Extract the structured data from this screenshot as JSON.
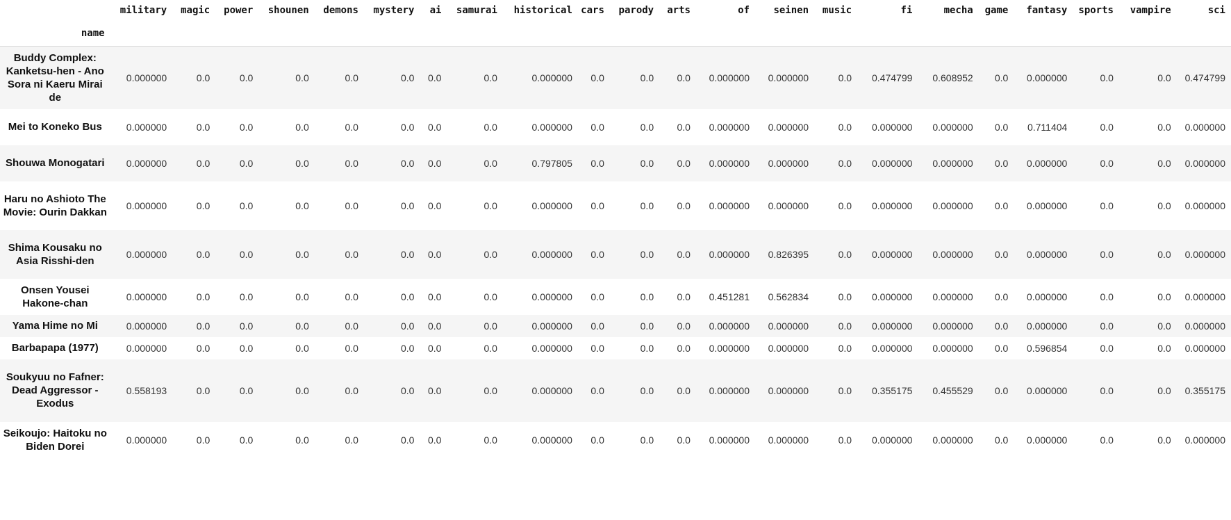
{
  "table": {
    "index_name": "name",
    "columns": [
      "military",
      "magic",
      "power",
      "shounen",
      "demons",
      "mystery",
      "ai",
      "samurai",
      "historical",
      "cars",
      "parody",
      "arts",
      "of",
      "seinen",
      "music",
      "fi",
      "mecha",
      "game",
      "fantasy",
      "sports",
      "vampire",
      "sci"
    ],
    "rows": [
      {
        "name": "Buddy Complex: Kanketsu-hen - Ano Sora ni Kaeru Mirai de",
        "values": [
          "0.000000",
          "0.0",
          "0.0",
          "0.0",
          "0.0",
          "0.0",
          "0.0",
          "0.0",
          "0.000000",
          "0.0",
          "0.0",
          "0.0",
          "0.000000",
          "0.000000",
          "0.0",
          "0.474799",
          "0.608952",
          "0.0",
          "0.000000",
          "0.0",
          "0.0",
          "0.474799"
        ]
      },
      {
        "name": "Mei to Koneko Bus",
        "values": [
          "0.000000",
          "0.0",
          "0.0",
          "0.0",
          "0.0",
          "0.0",
          "0.0",
          "0.0",
          "0.000000",
          "0.0",
          "0.0",
          "0.0",
          "0.000000",
          "0.000000",
          "0.0",
          "0.000000",
          "0.000000",
          "0.0",
          "0.711404",
          "0.0",
          "0.0",
          "0.000000"
        ]
      },
      {
        "name": "Shouwa Monogatari",
        "values": [
          "0.000000",
          "0.0",
          "0.0",
          "0.0",
          "0.0",
          "0.0",
          "0.0",
          "0.0",
          "0.797805",
          "0.0",
          "0.0",
          "0.0",
          "0.000000",
          "0.000000",
          "0.0",
          "0.000000",
          "0.000000",
          "0.0",
          "0.000000",
          "0.0",
          "0.0",
          "0.000000"
        ]
      },
      {
        "name": "Haru no Ashioto The Movie: Ourin Dakkan",
        "values": [
          "0.000000",
          "0.0",
          "0.0",
          "0.0",
          "0.0",
          "0.0",
          "0.0",
          "0.0",
          "0.000000",
          "0.0",
          "0.0",
          "0.0",
          "0.000000",
          "0.000000",
          "0.0",
          "0.000000",
          "0.000000",
          "0.0",
          "0.000000",
          "0.0",
          "0.0",
          "0.000000"
        ]
      },
      {
        "name": "Shima Kousaku no Asia Risshi-den",
        "values": [
          "0.000000",
          "0.0",
          "0.0",
          "0.0",
          "0.0",
          "0.0",
          "0.0",
          "0.0",
          "0.000000",
          "0.0",
          "0.0",
          "0.0",
          "0.000000",
          "0.826395",
          "0.0",
          "0.000000",
          "0.000000",
          "0.0",
          "0.000000",
          "0.0",
          "0.0",
          "0.000000"
        ]
      },
      {
        "name": "Onsen Yousei Hakone-chan",
        "values": [
          "0.000000",
          "0.0",
          "0.0",
          "0.0",
          "0.0",
          "0.0",
          "0.0",
          "0.0",
          "0.000000",
          "0.0",
          "0.0",
          "0.0",
          "0.451281",
          "0.562834",
          "0.0",
          "0.000000",
          "0.000000",
          "0.0",
          "0.000000",
          "0.0",
          "0.0",
          "0.000000"
        ]
      },
      {
        "name": "Yama Hime no Mi",
        "values": [
          "0.000000",
          "0.0",
          "0.0",
          "0.0",
          "0.0",
          "0.0",
          "0.0",
          "0.0",
          "0.000000",
          "0.0",
          "0.0",
          "0.0",
          "0.000000",
          "0.000000",
          "0.0",
          "0.000000",
          "0.000000",
          "0.0",
          "0.000000",
          "0.0",
          "0.0",
          "0.000000"
        ]
      },
      {
        "name": "Barbapapa (1977)",
        "values": [
          "0.000000",
          "0.0",
          "0.0",
          "0.0",
          "0.0",
          "0.0",
          "0.0",
          "0.0",
          "0.000000",
          "0.0",
          "0.0",
          "0.0",
          "0.000000",
          "0.000000",
          "0.0",
          "0.000000",
          "0.000000",
          "0.0",
          "0.596854",
          "0.0",
          "0.0",
          "0.000000"
        ]
      },
      {
        "name": "Soukyuu no Fafner: Dead Aggressor - Exodus",
        "values": [
          "0.558193",
          "0.0",
          "0.0",
          "0.0",
          "0.0",
          "0.0",
          "0.0",
          "0.0",
          "0.000000",
          "0.0",
          "0.0",
          "0.0",
          "0.000000",
          "0.000000",
          "0.0",
          "0.355175",
          "0.455529",
          "0.0",
          "0.000000",
          "0.0",
          "0.0",
          "0.355175"
        ]
      },
      {
        "name": "Seikoujo: Haitoku no Biden Dorei",
        "values": [
          "0.000000",
          "0.0",
          "0.0",
          "0.0",
          "0.0",
          "0.0",
          "0.0",
          "0.0",
          "0.000000",
          "0.0",
          "0.0",
          "0.0",
          "0.000000",
          "0.000000",
          "0.0",
          "0.000000",
          "0.000000",
          "0.0",
          "0.000000",
          "0.0",
          "0.0",
          "0.000000"
        ]
      }
    ]
  }
}
